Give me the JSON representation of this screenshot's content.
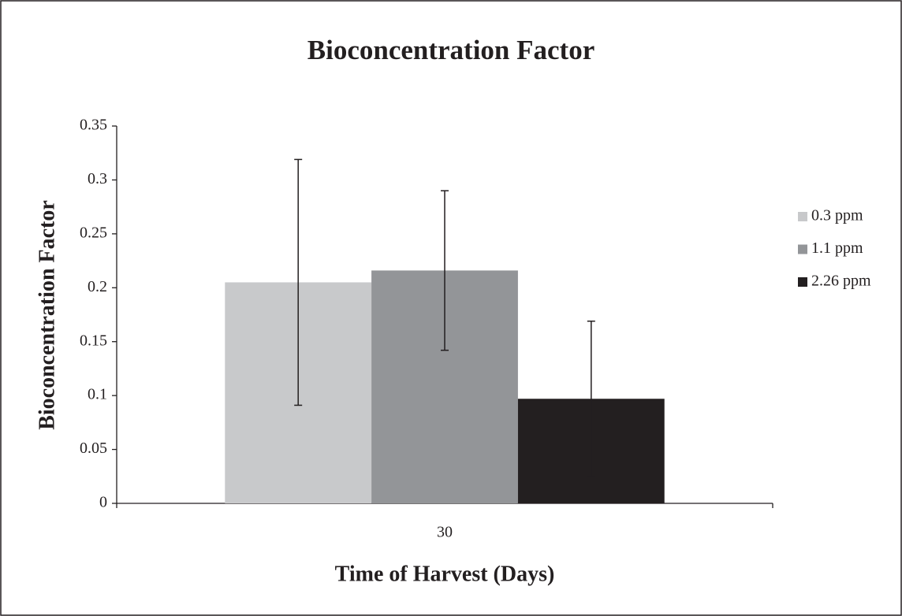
{
  "chart_data": {
    "type": "bar",
    "title": "Bioconcentration Factor",
    "x_label": "Time of Harvest (Days)",
    "y_label": "Bioconcentration Factor",
    "categories": [
      "30"
    ],
    "series": [
      {
        "name": "0.3 ppm",
        "color": "#c8c9cb",
        "values": [
          0.205
        ],
        "errors": [
          0.114
        ]
      },
      {
        "name": "1.1 ppm",
        "color": "#939598",
        "values": [
          0.216
        ],
        "errors": [
          0.074
        ]
      },
      {
        "name": "2.26 ppm",
        "color": "#231f20",
        "values": [
          0.097
        ],
        "errors": [
          0.072
        ]
      }
    ],
    "ylim": [
      0,
      0.35
    ],
    "yticks": [
      0,
      0.05,
      0.1,
      0.15,
      0.2,
      0.25,
      0.3,
      0.35
    ],
    "legend": "right"
  }
}
